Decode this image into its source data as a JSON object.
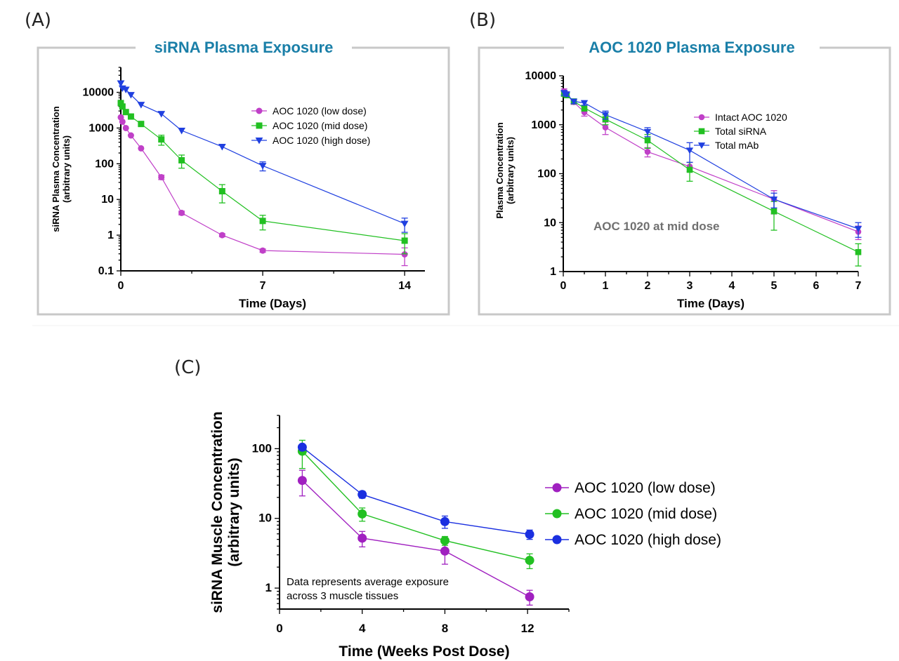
{
  "panels": {
    "a": {
      "label": "(A)",
      "title": "siRNA Plasma Exposure"
    },
    "b": {
      "label": "(B)",
      "title": "AOC 1020 Plasma Exposure"
    },
    "c": {
      "label": "(C)"
    }
  },
  "chart_data": [
    {
      "id": "A",
      "type": "line",
      "title": "siRNA Plasma Exposure",
      "xlabel": "Time (Days)",
      "ylabel": "siRNA Plasma Concentration (arbitrary units)",
      "yscale": "log",
      "xlim": [
        0,
        15
      ],
      "ylim": [
        0.1,
        50000
      ],
      "xticks": [
        0,
        7,
        14
      ],
      "yticks": [
        0.1,
        1,
        10,
        100,
        1000,
        10000
      ],
      "ytick_labels": [
        "0.1",
        "1",
        "10",
        "100",
        "1000",
        "10000"
      ],
      "legend_position": "top-right",
      "series": [
        {
          "name": "AOC 1020 (low dose)",
          "color": "#c040c8",
          "marker": "circle",
          "x": [
            0,
            0.08,
            0.25,
            0.5,
            1,
            2,
            3,
            5,
            7,
            14
          ],
          "y": [
            2000,
            1500,
            1000,
            620,
            270,
            42,
            4.2,
            1.0,
            0.37,
            0.29
          ],
          "err": [
            0,
            0,
            0,
            0,
            0,
            6,
            0.5,
            0.1,
            0.04,
            0.15
          ]
        },
        {
          "name": "AOC 1020 (mid dose)",
          "color": "#22c022",
          "marker": "square",
          "x": [
            0,
            0.08,
            0.25,
            0.5,
            1,
            2,
            3,
            5,
            7,
            14
          ],
          "y": [
            5000,
            4000,
            2800,
            2100,
            1300,
            480,
            125,
            17,
            2.5,
            0.7
          ],
          "err": [
            0,
            0,
            0,
            0,
            0,
            150,
            50,
            9,
            1.1,
            0.4
          ]
        },
        {
          "name": "AOC 1020 (high dose)",
          "color": "#2040e0",
          "marker": "triangle-down",
          "x": [
            0,
            0.08,
            0.25,
            0.5,
            1,
            2,
            3,
            5,
            7,
            14
          ],
          "y": [
            18000,
            13000,
            12000,
            8500,
            4500,
            2500,
            850,
            300,
            88,
            2.1
          ],
          "err": [
            0,
            0,
            0,
            0,
            0,
            0,
            0,
            0,
            25,
            0.9
          ]
        }
      ]
    },
    {
      "id": "B",
      "type": "line",
      "title": "AOC 1020 Plasma Exposure",
      "xlabel": "Time (Days)",
      "ylabel": "Plasma Concentration (arbitrary units)",
      "yscale": "log",
      "xlim": [
        0,
        7
      ],
      "ylim": [
        1,
        10000
      ],
      "xticks": [
        0,
        1,
        2,
        3,
        4,
        5,
        6,
        7
      ],
      "yticks": [
        1,
        10,
        100,
        1000,
        10000
      ],
      "ytick_labels": [
        "1",
        "10",
        "100",
        "1000",
        "10000"
      ],
      "annotation": "AOC 1020 at mid dose",
      "legend_position": "top-right",
      "series": [
        {
          "name": "Intact AOC 1020",
          "color": "#c040c8",
          "marker": "circle",
          "x": [
            0.02,
            0.08,
            0.25,
            0.5,
            1,
            2,
            3,
            5,
            7
          ],
          "y": [
            4800,
            4300,
            2900,
            1800,
            880,
            280,
            140,
            30,
            6.5
          ],
          "err": [
            600,
            400,
            300,
            300,
            250,
            60,
            30,
            15,
            2
          ]
        },
        {
          "name": "Total siRNA",
          "color": "#22c022",
          "marker": "square",
          "x": [
            0.02,
            0.08,
            0.25,
            0.5,
            1,
            2,
            3,
            5,
            7
          ],
          "y": [
            4300,
            4000,
            3000,
            2200,
            1300,
            480,
            120,
            17,
            2.5
          ],
          "err": [
            500,
            400,
            300,
            300,
            300,
            150,
            50,
            10,
            1.2
          ]
        },
        {
          "name": "Total mAb",
          "color": "#2040e0",
          "marker": "triangle-down",
          "x": [
            0.02,
            0.08,
            0.25,
            0.5,
            1,
            2,
            3,
            5,
            7
          ],
          "y": [
            4500,
            4200,
            3000,
            2800,
            1600,
            720,
            300,
            30,
            7.5
          ],
          "err": [
            500,
            400,
            300,
            300,
            300,
            150,
            130,
            10,
            2.5
          ]
        }
      ]
    },
    {
      "id": "C",
      "type": "line",
      "xlabel": "Time (Weeks Post Dose)",
      "ylabel": "siRNA Muscle Concentration (arbitrary units)",
      "yscale": "log",
      "xlim": [
        0,
        14
      ],
      "ylim": [
        0.5,
        300
      ],
      "xticks": [
        0,
        4,
        8,
        12
      ],
      "yticks": [
        1,
        10,
        100
      ],
      "ytick_labels": [
        "1",
        "10",
        "100"
      ],
      "annotation": [
        "Data represents average exposure",
        "across 3 muscle tissues"
      ],
      "legend_position": "right",
      "series": [
        {
          "name": "AOC 1020 (low dose)",
          "color": "#a020c0",
          "marker": "circle",
          "x": [
            1.1,
            4,
            8,
            12.1
          ],
          "y": [
            35,
            5.2,
            3.4,
            0.75
          ],
          "err": [
            14,
            1.3,
            1.2,
            0.18
          ]
        },
        {
          "name": "AOC 1020 (mid dose)",
          "color": "#22c022",
          "marker": "circle",
          "x": [
            1.1,
            4,
            8,
            12.1
          ],
          "y": [
            92,
            11.6,
            4.8,
            2.5
          ],
          "err": [
            40,
            2.5,
            0.7,
            0.6
          ]
        },
        {
          "name": "AOC 1020 (high dose)",
          "color": "#1a2fe0",
          "marker": "circle",
          "x": [
            1.1,
            4,
            8,
            12.1
          ],
          "y": [
            105,
            22,
            9,
            5.9
          ],
          "err": [
            10,
            2.5,
            1.8,
            0.9
          ]
        }
      ]
    }
  ]
}
